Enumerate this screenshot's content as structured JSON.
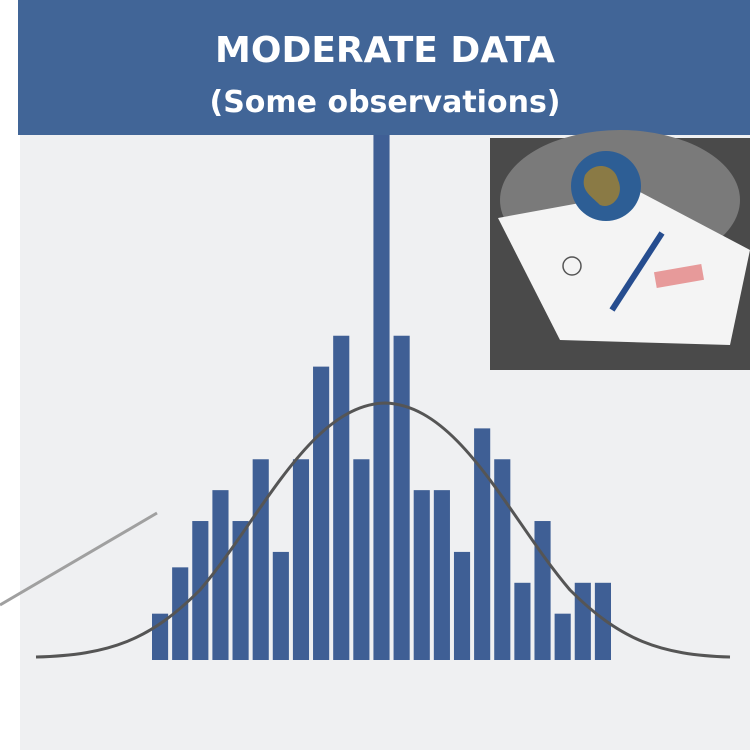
{
  "chart_data": {
    "type": "bar",
    "title": "MODERATE DATA",
    "subtitle": "(Some observations)",
    "categories": [
      null,
      null,
      null,
      null,
      null,
      null,
      null,
      null,
      null,
      null,
      null,
      null,
      null,
      null,
      null,
      null,
      null,
      null,
      null,
      null,
      null,
      null,
      null
    ],
    "values": [
      1.5,
      3,
      4.5,
      5.5,
      4.5,
      6.5,
      3.5,
      6.5,
      9.5,
      10.5,
      6.5,
      17,
      10.5,
      5.5,
      5.5,
      3.5,
      7.5,
      6.5,
      2.5,
      4.5,
      1.5,
      2.5,
      2.5
    ],
    "color": "#3f5f95",
    "ylim": [
      0,
      17
    ]
  }
}
